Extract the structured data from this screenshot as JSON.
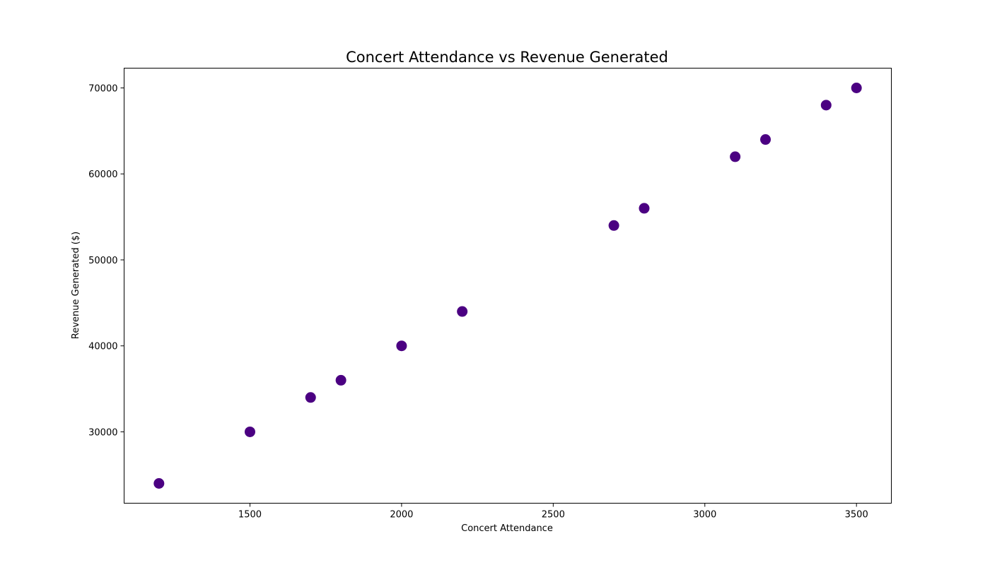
{
  "chart_data": {
    "type": "scatter",
    "title": "Concert Attendance vs Revenue Generated",
    "xlabel": "Concert Attendance",
    "ylabel": "Revenue Generated ($)",
    "xlim": [
      1085,
      3615
    ],
    "ylim": [
      21700,
      72300
    ],
    "xticks": [
      1500,
      2000,
      2500,
      3000,
      3500
    ],
    "yticks": [
      30000,
      40000,
      50000,
      60000,
      70000
    ],
    "grid": false,
    "marker_color": "#4b0082",
    "points": [
      {
        "x": 1200,
        "y": 24000
      },
      {
        "x": 1500,
        "y": 30000
      },
      {
        "x": 1700,
        "y": 34000
      },
      {
        "x": 1800,
        "y": 36000
      },
      {
        "x": 2000,
        "y": 40000
      },
      {
        "x": 2200,
        "y": 44000
      },
      {
        "x": 2700,
        "y": 54000
      },
      {
        "x": 2800,
        "y": 56000
      },
      {
        "x": 3100,
        "y": 62000
      },
      {
        "x": 3200,
        "y": 64000
      },
      {
        "x": 3400,
        "y": 68000
      },
      {
        "x": 3500,
        "y": 70000
      }
    ]
  }
}
